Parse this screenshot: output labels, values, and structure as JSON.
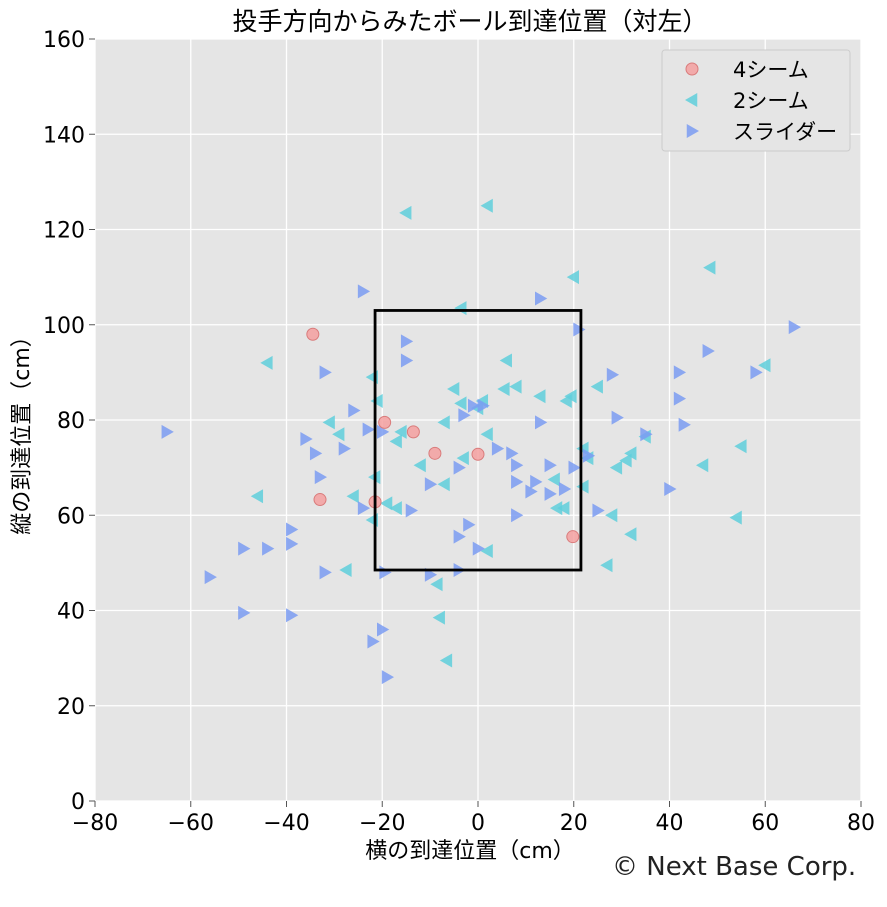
{
  "copyright": "© Next Base Corp.",
  "chart_data": {
    "type": "scatter",
    "title": "投手方向からみたボール到達位置（対左）",
    "xlabel": "横の到達位置（cm）",
    "ylabel": "縦の到達位置（cm）",
    "xlim": [
      -80,
      80
    ],
    "ylim": [
      0,
      160
    ],
    "xticks": [
      -80,
      -60,
      -40,
      -20,
      0,
      20,
      40,
      60,
      80
    ],
    "xtick_labels": [
      "−80",
      "−60",
      "−40",
      "−20",
      "0",
      "20",
      "40",
      "60",
      "80"
    ],
    "yticks": [
      0,
      20,
      40,
      60,
      80,
      100,
      120,
      140,
      160
    ],
    "ytick_labels": [
      "0",
      "20",
      "40",
      "60",
      "80",
      "100",
      "120",
      "140",
      "160"
    ],
    "grid": true,
    "background": "#e5e5e5",
    "legend_position": "top-right",
    "strike_zone": {
      "x": [
        -21.5,
        21.5
      ],
      "y": [
        48.5,
        103
      ]
    },
    "series": [
      {
        "name": "4シーム",
        "marker": "circle",
        "color": "#f4a0a0",
        "points": [
          [
            -34.5,
            98
          ],
          [
            -19.5,
            79.5
          ],
          [
            -13.5,
            77.5
          ],
          [
            -9,
            73
          ],
          [
            0,
            72.8
          ],
          [
            -33,
            63.3
          ],
          [
            -21.5,
            62.8
          ],
          [
            19.8,
            55.5
          ]
        ]
      },
      {
        "name": "2シーム",
        "marker": "triangle-left",
        "color": "#5fcfdc",
        "points": [
          [
            -15,
            123.5
          ],
          [
            2,
            125
          ],
          [
            -3.5,
            103.5
          ],
          [
            20,
            110
          ],
          [
            48.5,
            112
          ],
          [
            -44,
            92
          ],
          [
            -22,
            89
          ],
          [
            -31,
            79.5
          ],
          [
            -21,
            84
          ],
          [
            -16,
            77.5
          ],
          [
            -17,
            75.5
          ],
          [
            -29,
            77
          ],
          [
            -7,
            79.5
          ],
          [
            -5,
            86.5
          ],
          [
            -3.5,
            83.5
          ],
          [
            0,
            82.5
          ],
          [
            1,
            84
          ],
          [
            2,
            77
          ],
          [
            6,
            92.5
          ],
          [
            5.5,
            86.5
          ],
          [
            8,
            87
          ],
          [
            13,
            85
          ],
          [
            18.5,
            84
          ],
          [
            19.5,
            85
          ],
          [
            25,
            87
          ],
          [
            22,
            74
          ],
          [
            23,
            72
          ],
          [
            29,
            70
          ],
          [
            31,
            71.5
          ],
          [
            32,
            73
          ],
          [
            35,
            76.5
          ],
          [
            47,
            70.5
          ],
          [
            55,
            74.5
          ],
          [
            60,
            91.5
          ],
          [
            -46,
            64
          ],
          [
            -26,
            64
          ],
          [
            -22,
            59
          ],
          [
            -19,
            62.5
          ],
          [
            -17,
            61.5
          ],
          [
            -12,
            70.5
          ],
          [
            -7,
            66.5
          ],
          [
            -3,
            72
          ],
          [
            16,
            67.5
          ],
          [
            16.5,
            61.5
          ],
          [
            18,
            61.5
          ],
          [
            22,
            66
          ],
          [
            28,
            60
          ],
          [
            32,
            56
          ],
          [
            54,
            59.5
          ],
          [
            -27.5,
            48.5
          ],
          [
            -21.5,
            68
          ],
          [
            2,
            52.5
          ],
          [
            -8.5,
            45.5
          ],
          [
            -8,
            38.5
          ],
          [
            -6.5,
            29.5
          ],
          [
            27,
            49.5
          ]
        ]
      },
      {
        "name": "スライダー",
        "marker": "triangle-right",
        "color": "#7b9cf2",
        "points": [
          [
            -65,
            77.5
          ],
          [
            -56,
            47
          ],
          [
            -49,
            53
          ],
          [
            -49,
            39.5
          ],
          [
            -44,
            53
          ],
          [
            -39,
            57
          ],
          [
            -39,
            54
          ],
          [
            -39,
            39
          ],
          [
            -36,
            76
          ],
          [
            -34,
            73
          ],
          [
            -33,
            68
          ],
          [
            -32,
            90
          ],
          [
            -32,
            48
          ],
          [
            -28,
            74
          ],
          [
            -26,
            82
          ],
          [
            -24,
            107
          ],
          [
            -24,
            61.5
          ],
          [
            -23,
            78
          ],
          [
            -22,
            33.5
          ],
          [
            -20,
            36
          ],
          [
            -20,
            77.5
          ],
          [
            -19.5,
            48
          ],
          [
            -19,
            26
          ],
          [
            -15,
            96.5
          ],
          [
            -15,
            92.5
          ],
          [
            -14,
            61
          ],
          [
            -10,
            66.5
          ],
          [
            -10,
            47.5
          ],
          [
            -4,
            55.5
          ],
          [
            -4,
            48.5
          ],
          [
            -4,
            70
          ],
          [
            -3,
            81
          ],
          [
            -2,
            58
          ],
          [
            -1,
            83
          ],
          [
            0,
            53
          ],
          [
            1,
            83
          ],
          [
            4,
            74
          ],
          [
            7,
            73
          ],
          [
            8,
            70.5
          ],
          [
            8,
            67
          ],
          [
            8,
            60
          ],
          [
            11,
            65
          ],
          [
            12,
            67
          ],
          [
            13,
            105.5
          ],
          [
            13,
            79.5
          ],
          [
            15,
            70.5
          ],
          [
            15,
            64.5
          ],
          [
            18,
            65.5
          ],
          [
            20,
            70
          ],
          [
            21,
            99
          ],
          [
            23,
            72.5
          ],
          [
            25,
            61
          ],
          [
            28,
            89.5
          ],
          [
            29,
            80.5
          ],
          [
            35,
            77
          ],
          [
            40,
            65.5
          ],
          [
            42,
            90
          ],
          [
            42,
            84.5
          ],
          [
            43,
            79
          ],
          [
            48,
            94.5
          ],
          [
            58,
            90
          ],
          [
            66,
            99.5
          ]
        ]
      }
    ]
  }
}
